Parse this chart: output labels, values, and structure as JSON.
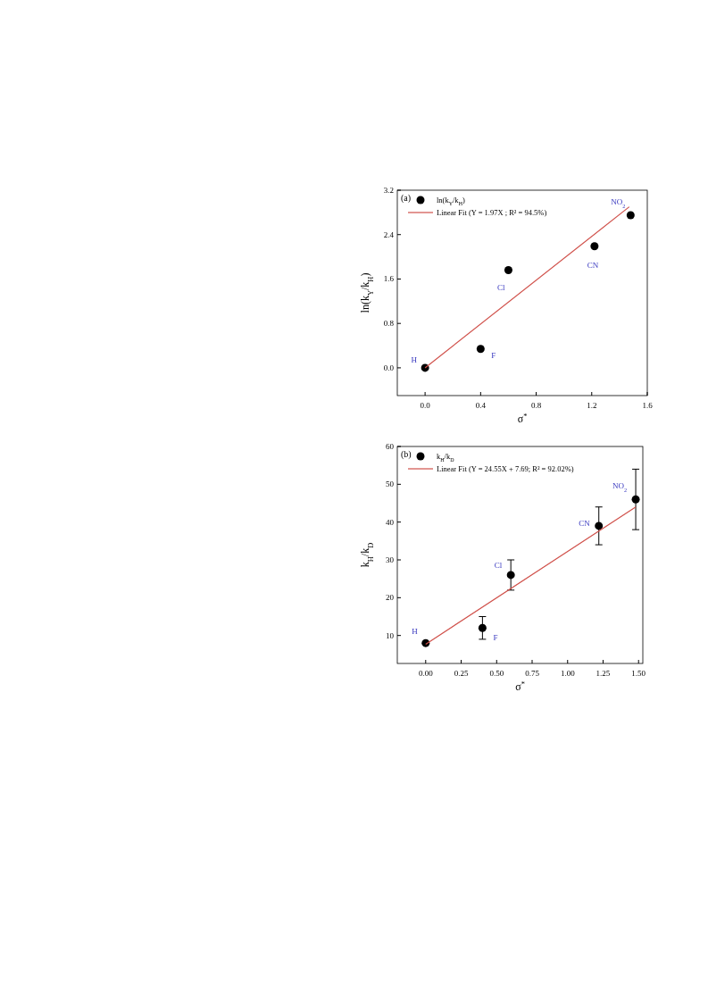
{
  "chart_data": [
    {
      "type": "scatter",
      "title": "(a)",
      "xlabel": "σ$^{*}$",
      "ylabel": "ln(k$_{Y}$/k$_{H}$)",
      "xlim": [
        -0.2,
        1.6
      ],
      "xticks": [
        {
          "value": 0,
          "label": "0.0"
        },
        0.4,
        0.8,
        1.2,
        1.6
      ],
      "ylim": [
        -0.5,
        3.2
      ],
      "yticks": [
        {
          "value": 0,
          "label": "0.0"
        },
        0.8,
        1.6,
        2.4,
        3.2
      ],
      "legend": "top left",
      "series": [
        {
          "name": "ln(k$_{Y}$/k$_{H}$)",
          "marker": "circle",
          "color": "#000000",
          "x": [
            0,
            0.4,
            0.6,
            1.22,
            1.48
          ],
          "values": [
            0,
            0.34,
            1.76,
            2.19,
            2.75
          ]
        },
        {
          "name": "Linear Fit (Y = 1.97X ; R² = 94.5%)",
          "type": "line",
          "marker": "none",
          "color": "#d0504a",
          "x": [
            0,
            1.47
          ],
          "values": [
            0,
            2.9
          ]
        }
      ],
      "annotations": [
        {
          "text": "H",
          "x": 0,
          "y": 0
        },
        {
          "text": "F",
          "x": 0.4,
          "y": 0.34
        },
        {
          "text": "Cl",
          "x": 0.6,
          "y": 1.76
        },
        {
          "text": "CN",
          "x": 1.22,
          "y": 2.19
        },
        {
          "text": "NO$_{2}$",
          "x": 1.48,
          "y": 2.75
        }
      ]
    },
    {
      "type": "scatter",
      "title": "(b)",
      "xlabel": "σ$^{*}$",
      "ylabel": "k$_{H}$/k$_{D}$",
      "xlim": [
        -0.2,
        1.53
      ],
      "xticks": [
        {
          "value": 0,
          "label": "0.00"
        },
        0.25,
        {
          "value": 0.5,
          "label": "0.50"
        },
        0.75,
        {
          "value": 1,
          "label": "1.00"
        },
        1.25,
        {
          "value": 1.5,
          "label": "1.50"
        }
      ],
      "ylim": [
        2.6,
        60
      ],
      "yticks": [
        10,
        20,
        30,
        40,
        50,
        60
      ],
      "legend": "top left",
      "series": [
        {
          "name": "k$_{H}$/k$_{D}$",
          "marker": "circle",
          "color": "#000000",
          "x": [
            0,
            0.4,
            0.6,
            1.22,
            1.48
          ],
          "values": [
            8,
            12,
            26,
            39,
            46
          ],
          "errors": [
            null,
            [
              9,
              15
            ],
            [
              22,
              30
            ],
            [
              34,
              44
            ],
            [
              38,
              54
            ]
          ]
        },
        {
          "name": "Linear Fit (Y = 24.55X + 7.69; R² = 92.02%)",
          "type": "line",
          "marker": "none",
          "color": "#d0504a",
          "x": [
            0,
            1.48
          ],
          "values": [
            7.7,
            44
          ]
        }
      ],
      "annotations": [
        {
          "text": "H",
          "x": 0,
          "y": 8
        },
        {
          "text": "F",
          "x": 0.4,
          "y": 12
        },
        {
          "text": "Cl",
          "x": 0.6,
          "y": 26
        },
        {
          "text": "CN",
          "x": 1.22,
          "y": 39
        },
        {
          "text": "NO$_{2}$",
          "x": 1.48,
          "y": 46
        }
      ]
    }
  ]
}
